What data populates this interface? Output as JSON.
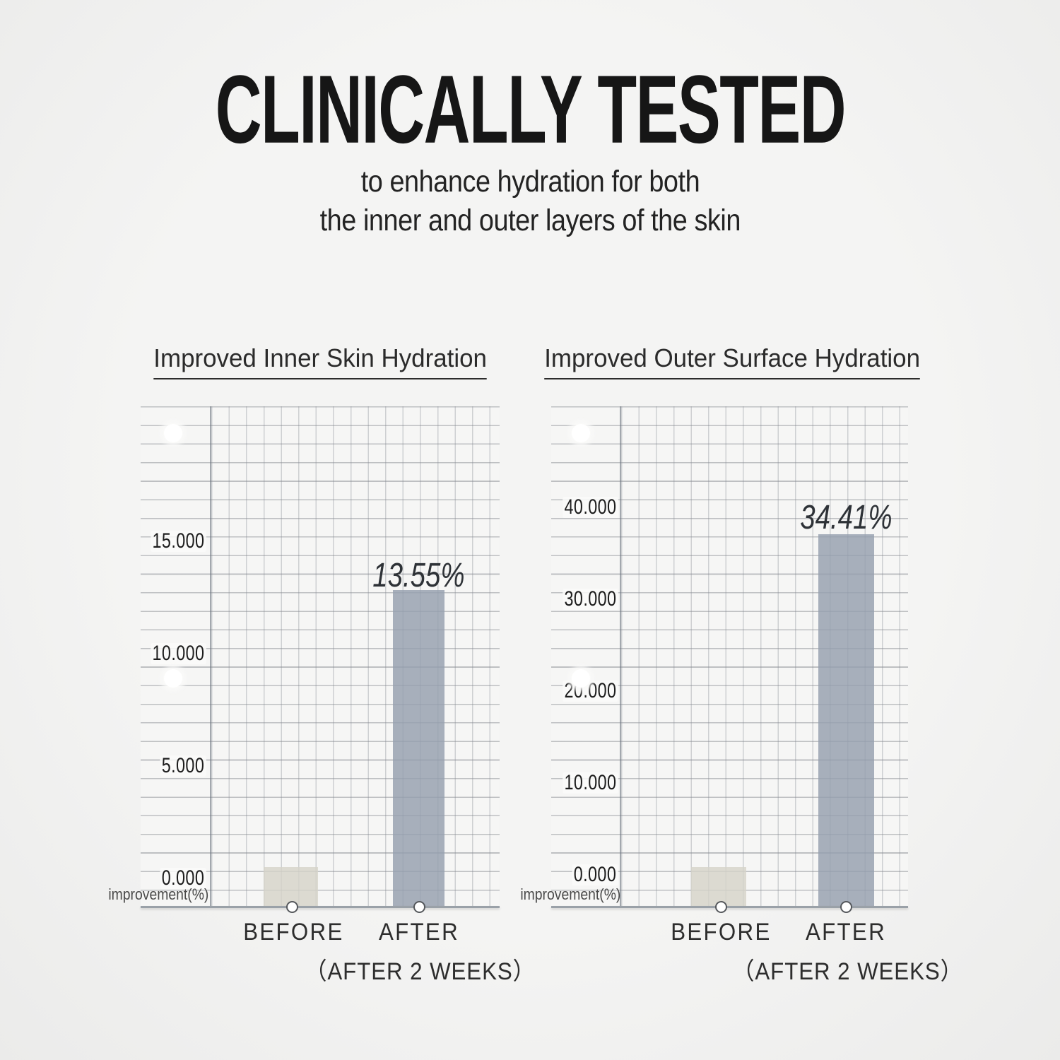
{
  "header": {
    "title": "CLINICALLY TESTED",
    "subtitle_line1": "to enhance hydration for both",
    "subtitle_line2": "the inner and outer layers of the skin"
  },
  "charts": [
    {
      "title": "Improved Inner Skin Hydration",
      "unit_label": "improvement(%)",
      "y_ticks": [
        "15.000",
        "10.000",
        "5.000",
        "0.000"
      ],
      "categories": [
        "BEFORE",
        "AFTER"
      ],
      "x_note": "（AFTER 2 WEEKS）",
      "after_label": "13.55%"
    },
    {
      "title": "Improved Outer Surface Hydration",
      "unit_label": "improvement(%)",
      "y_ticks": [
        "40.000",
        "30.000",
        "20.000",
        "10.000",
        "0.000"
      ],
      "categories": [
        "BEFORE",
        "AFTER"
      ],
      "x_note": "（AFTER 2 WEEKS）",
      "after_label": "34.41%"
    }
  ],
  "chart_data": [
    {
      "type": "bar",
      "title": "Improved Inner Skin Hydration",
      "categories": [
        "BEFORE",
        "AFTER (AFTER 2 WEEKS)"
      ],
      "values": [
        0.9,
        13.55
      ],
      "data_labels": [
        "",
        "13.55%"
      ],
      "xlabel": "",
      "ylabel": "improvement(%)",
      "yticks": [
        0,
        5,
        10,
        15
      ],
      "ylim": [
        0,
        22
      ],
      "grid": true,
      "legend": "none",
      "bar_colors": [
        "#d5d3c9",
        "#95** see colors.after **"
      ]
    },
    {
      "type": "bar",
      "title": "Improved Outer Surface Hydration",
      "categories": [
        "BEFORE",
        "AFTER (AFTER 2 WEEKS)"
      ],
      "values": [
        1.9,
        34.41
      ],
      "data_labels": [
        "",
        "34.41%"
      ],
      "xlabel": "",
      "ylabel": "improvement(%)",
      "yticks": [
        0,
        10,
        20,
        30,
        40
      ],
      "ylim": [
        0,
        50
      ],
      "grid": true,
      "legend": "none",
      "bar_colors": [
        "#d5d3c9",
        "#95** see colors.after **"
      ]
    }
  ],
  "colors": {
    "before_bar": "#d5d3c9",
    "after_bar": "#959fafcc",
    "axis_line": "#9aa1a8",
    "title_text": "#161616"
  }
}
